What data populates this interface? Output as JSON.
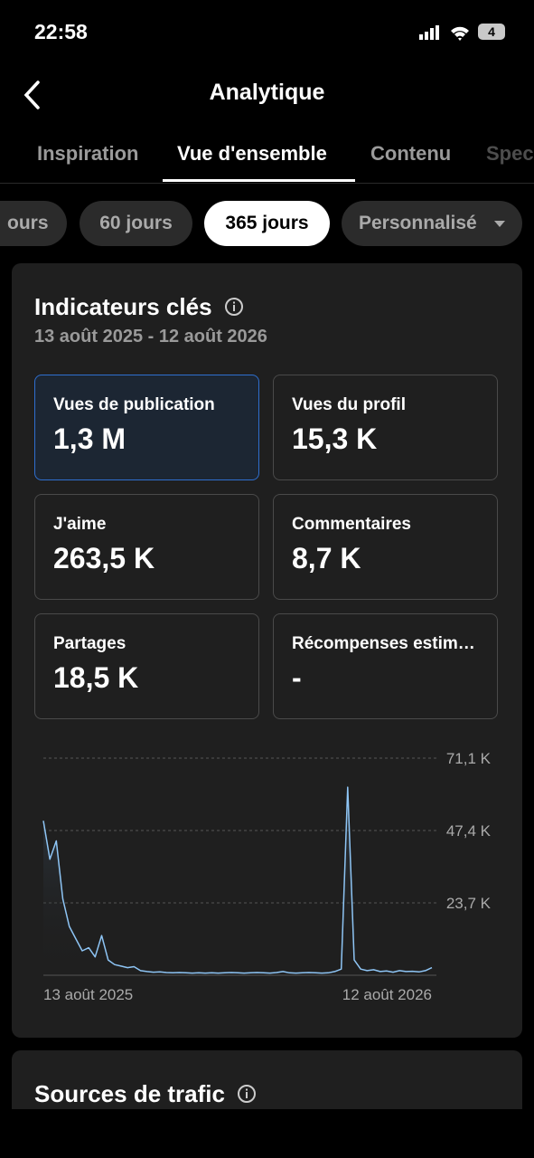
{
  "status_bar": {
    "time": "22:58",
    "battery": "4"
  },
  "header": {
    "title": "Analytique"
  },
  "tabs": [
    "Inspiration",
    "Vue d'ensemble",
    "Contenu",
    "Spec"
  ],
  "filters": [
    "ours",
    "60 jours",
    "365 jours",
    "Personnalisé"
  ],
  "key_metrics": {
    "title": "Indicateurs clés",
    "date_range": "13 août 2025 - 12 août 2026",
    "metrics": [
      {
        "label": "Vues de publication",
        "value": "1,3 M"
      },
      {
        "label": "Vues du profil",
        "value": "15,3 K"
      },
      {
        "label": "J'aime",
        "value": "263,5 K"
      },
      {
        "label": "Commentaires",
        "value": "8,7 K"
      },
      {
        "label": "Partages",
        "value": "18,5 K"
      },
      {
        "label": "Récompenses estimées",
        "value": "-"
      }
    ]
  },
  "chart": {
    "type": "line",
    "color": "#8ec5f5",
    "categories": [
      "13 août 2025",
      null,
      null,
      null,
      null,
      null,
      null,
      null,
      null,
      null,
      null,
      null,
      null,
      null,
      null,
      null,
      null,
      null,
      null,
      null,
      null,
      null,
      null,
      null,
      null,
      null,
      null,
      null,
      null,
      null,
      null,
      null,
      null,
      null,
      null,
      null,
      null,
      null,
      null,
      null,
      null,
      null,
      null,
      null,
      null,
      null,
      null,
      null,
      null,
      null,
      null,
      null,
      null,
      null,
      null,
      null,
      null,
      null,
      null,
      null,
      "12 août 2026"
    ],
    "values": [
      50600,
      38000,
      44000,
      25000,
      16000,
      12000,
      8000,
      9000,
      6000,
      13000,
      5000,
      3500,
      3000,
      2500,
      2800,
      1500,
      1200,
      1000,
      1100,
      900,
      800,
      900,
      800,
      700,
      800,
      700,
      800,
      700,
      800,
      900,
      800,
      700,
      800,
      900,
      800,
      700,
      900,
      1200,
      800,
      700,
      800,
      900,
      800,
      700,
      800,
      1200,
      2000,
      61600,
      5000,
      2000,
      1500,
      1800,
      1200,
      1400,
      1000,
      1500,
      1200,
      1300,
      1100,
      1500,
      2500
    ],
    "ylim": [
      0,
      71100
    ],
    "yticks": [
      {
        "value": 23700,
        "label": "23,7 K"
      },
      {
        "value": 47400,
        "label": "47,4 K"
      },
      {
        "value": 71100,
        "label": "71,1 K"
      }
    ],
    "grid": true
  },
  "traffic_sources": {
    "title": "Sources de trafic"
  }
}
